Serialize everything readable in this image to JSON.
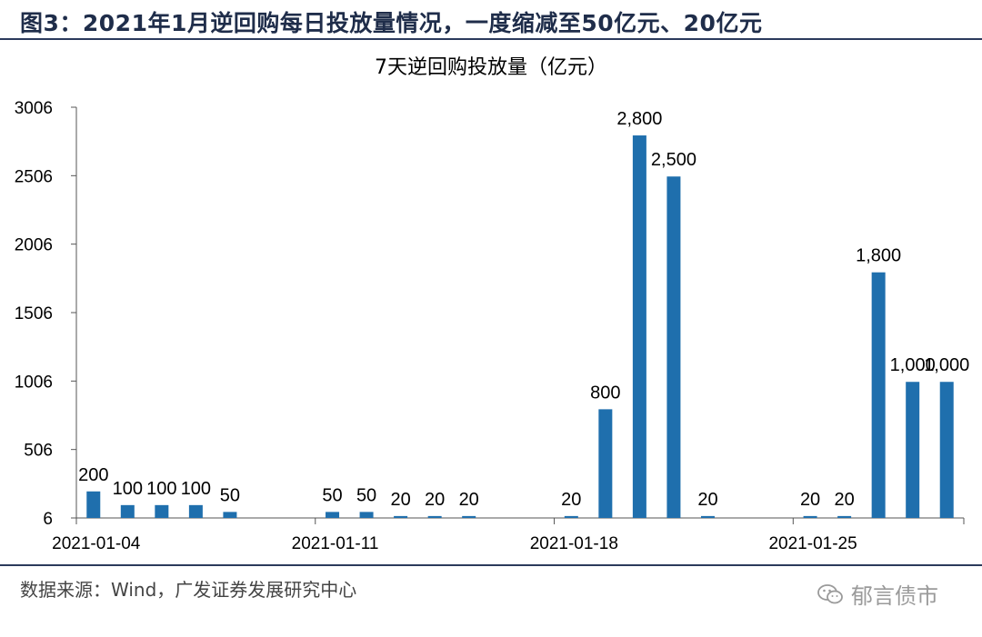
{
  "figure_title": "图3：2021年1月逆回购每日投放量情况，一度缩减至50亿元、20亿元",
  "source_note": "数据来源：Wind，广发证券发展研究中心",
  "watermark": "郁言债市",
  "colors": {
    "bar": "#1f6fad",
    "title_rule": "#2b3a5c"
  },
  "chart_data": {
    "type": "bar",
    "title": "7天逆回购投放量（亿元）",
    "xlabel": "",
    "ylabel": "",
    "ylim": [
      6,
      3006
    ],
    "yticks": [
      6,
      506,
      1006,
      1506,
      2006,
      2506,
      3006
    ],
    "xtick_labels": [
      "2021-01-04",
      "2021-01-11",
      "2021-01-18",
      "2021-01-25"
    ],
    "grid": false,
    "categories": [
      "2021-01-04",
      "2021-01-05",
      "2021-01-06",
      "2021-01-07",
      "2021-01-08",
      "2021-01-09",
      "2021-01-10",
      "2021-01-11",
      "2021-01-12",
      "2021-01-13",
      "2021-01-14",
      "2021-01-15",
      "2021-01-16",
      "2021-01-17",
      "2021-01-18",
      "2021-01-19",
      "2021-01-20",
      "2021-01-21",
      "2021-01-22",
      "2021-01-23",
      "2021-01-24",
      "2021-01-25",
      "2021-01-26",
      "2021-01-27",
      "2021-01-28",
      "2021-01-29"
    ],
    "values": [
      200,
      100,
      100,
      100,
      50,
      null,
      null,
      50,
      50,
      20,
      20,
      20,
      null,
      null,
      20,
      800,
      2800,
      2500,
      20,
      null,
      null,
      20,
      20,
      1800,
      1000,
      1000
    ],
    "data_labels": [
      "200",
      "100",
      "100",
      "100",
      "50",
      null,
      null,
      "50",
      "50",
      "20",
      "20",
      "20",
      null,
      null,
      "20",
      "800",
      "2,800",
      "2,500",
      "20",
      null,
      null,
      "20",
      "20",
      "1,800",
      "1,000",
      "1,000"
    ]
  }
}
